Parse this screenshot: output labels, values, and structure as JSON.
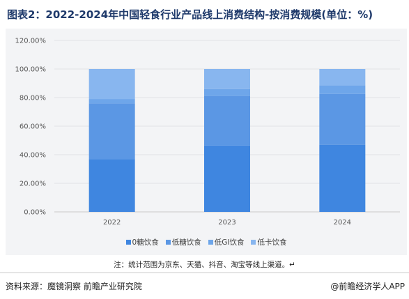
{
  "title": "图表2：2022-2024年中国轻食行业产品线上消费结构-按消费规模(单位：%)",
  "note": "注：统计范围为京东、天猫、抖音、淘宝等线上渠道。↵",
  "source": "资料来源：魔镜洞察 前瞻产业研究院",
  "credit": "@前瞻经济学人APP",
  "chart_data": {
    "type": "bar",
    "stacked": true,
    "categories": [
      "2022",
      "2023",
      "2024"
    ],
    "series": [
      {
        "name": "0糖饮食",
        "values": [
          37,
          46.5,
          47
        ],
        "color": "#3f86e0"
      },
      {
        "name": "低糖饮食",
        "values": [
          39,
          34.5,
          35.5
        ],
        "color": "#5b97e4"
      },
      {
        "name": "低GI饮食",
        "values": [
          3,
          5,
          6
        ],
        "color": "#6ea6ea"
      },
      {
        "name": "低卡饮食",
        "values": [
          21,
          14,
          11.5
        ],
        "color": "#88b6ef"
      }
    ],
    "yticks": [
      "0.00%",
      "20.00%",
      "40.00%",
      "60.00%",
      "80.00%",
      "100.00%",
      "120.00%"
    ],
    "ylim": [
      0,
      120
    ],
    "grid": true,
    "legend_position": "bottom"
  }
}
